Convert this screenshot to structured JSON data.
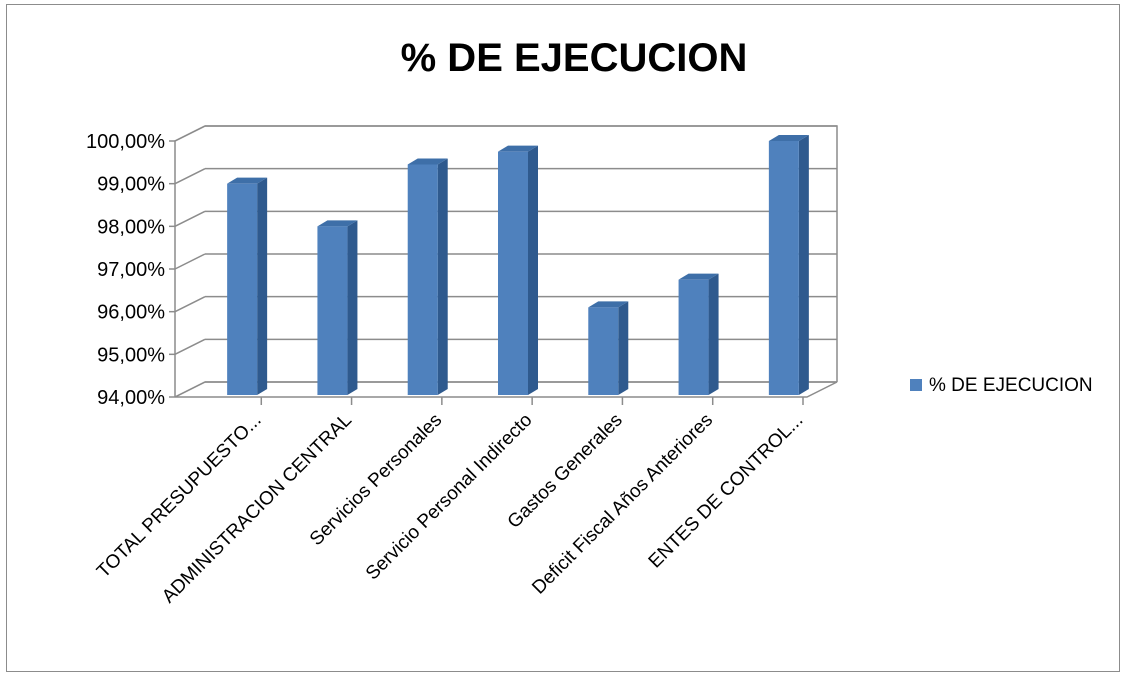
{
  "chart_data": {
    "type": "bar",
    "title": "% DE EJECUCION",
    "categories": [
      "TOTAL PRESUPUESTO...",
      "ADMINISTRACION CENTRAL",
      "Servicios Personales",
      "Servicio Personal Indirecto",
      "Gastos Generales",
      "Deficit Fiscal Años Anteriores",
      "ENTES DE CONTROL..."
    ],
    "series": [
      {
        "name": "% DE EJECUCION",
        "values": [
          99.0,
          98.0,
          99.45,
          99.75,
          96.1,
          96.75,
          100.0
        ],
        "color": "#4f81bd"
      }
    ],
    "y_ticks": [
      "94,00%",
      "95,00%",
      "96,00%",
      "97,00%",
      "98,00%",
      "99,00%",
      "100,00%"
    ],
    "ylim": [
      94,
      100
    ],
    "y_step": 1,
    "grid": true,
    "legend_position": "right",
    "chart_style": "3d-column"
  }
}
